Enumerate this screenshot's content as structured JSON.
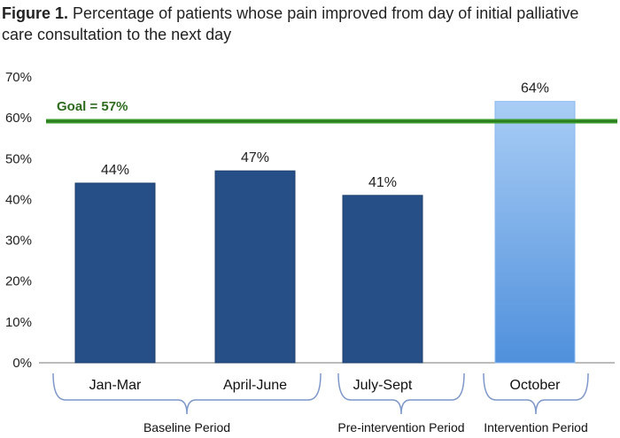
{
  "figure": {
    "label": "Figure 1.",
    "title": "Percentage of patients whose pain improved from day of initial palliative care consultation to the next day"
  },
  "chart_data": {
    "type": "bar",
    "categories": [
      "Jan-Mar",
      "April-June",
      "July-Sept",
      "October"
    ],
    "values": [
      44,
      47,
      41,
      64
    ],
    "value_labels": [
      "44%",
      "47%",
      "41%",
      "64%"
    ],
    "ylim": [
      0,
      70
    ],
    "yticks": [
      "0%",
      "10%",
      "20%",
      "30%",
      "40%",
      "50%",
      "60%",
      "70%"
    ],
    "goal": {
      "label": "Goal = 57%",
      "value": 57,
      "color": "#3a9a2a"
    },
    "bar_colors": [
      "#264f88",
      "#264f88",
      "#264f88",
      "#6fa8e8"
    ],
    "groups": [
      {
        "label": "Baseline Period",
        "categories": [
          "Jan-Mar",
          "April-June"
        ]
      },
      {
        "label": "Pre-intervention Period",
        "categories": [
          "July-Sept"
        ]
      },
      {
        "label": "Intervention Period",
        "categories": [
          "October"
        ]
      }
    ],
    "xlabel": "",
    "ylabel": "",
    "grid": false
  }
}
